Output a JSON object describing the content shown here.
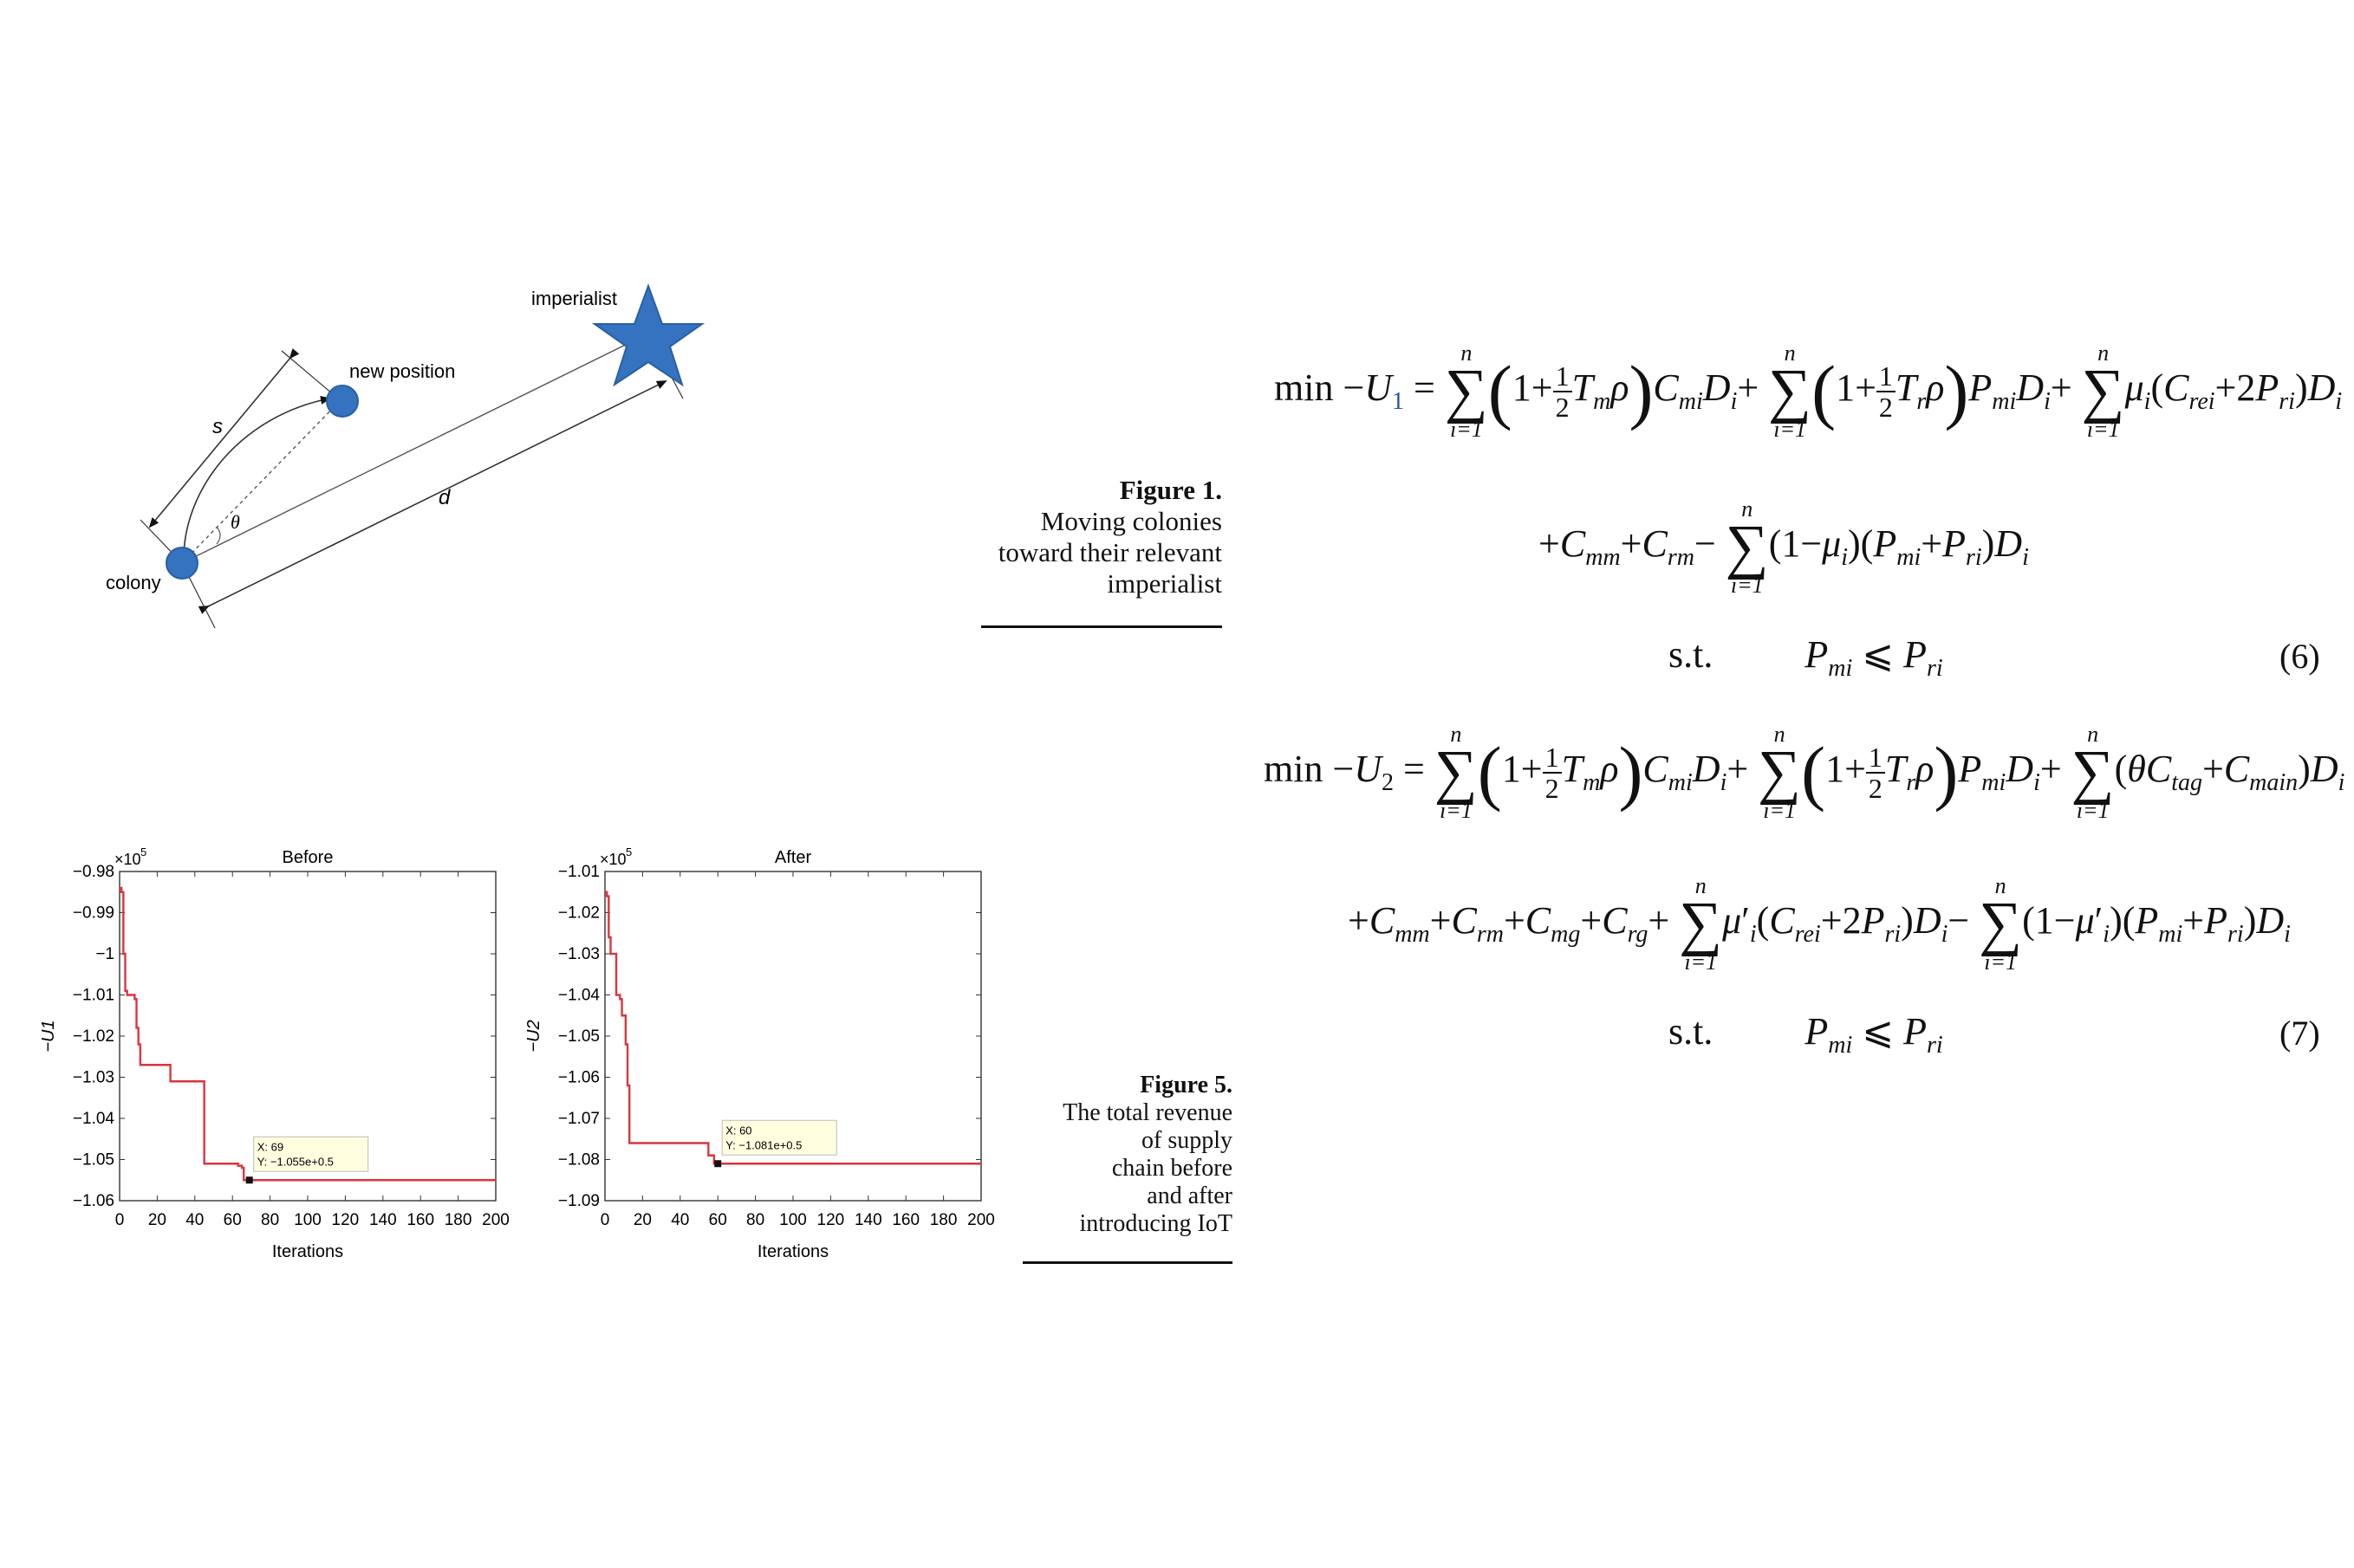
{
  "figure1": {
    "labels": {
      "imperialist": "imperialist",
      "new_position": "new position",
      "colony": "colony",
      "s": "s",
      "d": "d",
      "theta": "θ"
    },
    "caption": {
      "number": "Figure 1.",
      "text_lines": [
        "Moving colonies",
        "toward their relevant",
        "imperialist"
      ]
    },
    "colors": {
      "point": "#3573c1",
      "star": "#3573c1",
      "point_edge": "#2a5fa3"
    }
  },
  "figure5": {
    "caption": {
      "number": "Figure 5.",
      "text_lines": [
        "The total revenue",
        "of supply",
        "chain before",
        "and after",
        "introducing IoT"
      ]
    }
  },
  "chart_data": [
    {
      "type": "line",
      "title": "Before",
      "xlabel": "Iterations",
      "ylabel": "−U1",
      "exponent_label": "×10",
      "exponent_power": "5",
      "xlim": [
        0,
        200
      ],
      "ylim": [
        -1.06,
        -0.98
      ],
      "xticks": [
        "0",
        "20",
        "40",
        "60",
        "80",
        "100",
        "120",
        "140",
        "160",
        "180",
        "200"
      ],
      "yticks": [
        "−0.98",
        "−0.99",
        "−1",
        "−1.01",
        "−1.02",
        "−1.03",
        "−1.04",
        "−1.05",
        "−1.06"
      ],
      "ytick_values": [
        -0.98,
        -0.99,
        -1,
        -1.01,
        -1.02,
        -1.03,
        -1.04,
        -1.05,
        -1.06
      ],
      "series": [
        {
          "color": "#d9363e",
          "x": [
            0,
            1,
            2,
            3,
            4,
            8,
            9,
            10,
            11,
            14,
            26,
            27,
            44,
            45,
            62,
            63,
            65,
            66,
            200
          ],
          "y": [
            -0.984,
            -0.985,
            -1.0,
            -1.009,
            -1.01,
            -1.011,
            -1.018,
            -1.022,
            -1.027,
            -1.027,
            -1.027,
            -1.031,
            -1.031,
            -1.051,
            -1.051,
            -1.0515,
            -1.052,
            -1.055,
            -1.055
          ]
        }
      ],
      "annotation": {
        "x_label": "X: 69",
        "y_label": "Y: −1.055e+0.5",
        "x": 69,
        "y": -1.055
      }
    },
    {
      "type": "line",
      "title": "After",
      "xlabel": "Iterations",
      "ylabel": "−U2",
      "exponent_label": "×10",
      "exponent_power": "5",
      "xlim": [
        0,
        200
      ],
      "ylim": [
        -1.09,
        -1.01
      ],
      "xticks": [
        "0",
        "20",
        "40",
        "60",
        "80",
        "100",
        "120",
        "140",
        "160",
        "180",
        "200"
      ],
      "yticks": [
        "−1.01",
        "−1.02",
        "−1.03",
        "−1.04",
        "−1.05",
        "−1.06",
        "−1.07",
        "−1.08",
        "−1.09"
      ],
      "ytick_values": [
        -1.01,
        -1.02,
        -1.03,
        -1.04,
        -1.05,
        -1.06,
        -1.07,
        -1.08,
        -1.09
      ],
      "series": [
        {
          "color": "#d9363e",
          "x": [
            0,
            1,
            2,
            3,
            6,
            8,
            9,
            11,
            12,
            13,
            14,
            54,
            55,
            57,
            58,
            200
          ],
          "y": [
            -1.015,
            -1.016,
            -1.026,
            -1.03,
            -1.04,
            -1.041,
            -1.045,
            -1.052,
            -1.062,
            -1.076,
            -1.076,
            -1.076,
            -1.079,
            -1.079,
            -1.081,
            -1.081
          ]
        }
      ],
      "annotation": {
        "x_label": "X: 60",
        "y_label": "Y: −1.081e+0.5",
        "x": 60,
        "y": -1.081
      }
    }
  ],
  "equations": {
    "eq6_number": "(6)",
    "eq7_number": "(7)",
    "st": "s.t."
  }
}
